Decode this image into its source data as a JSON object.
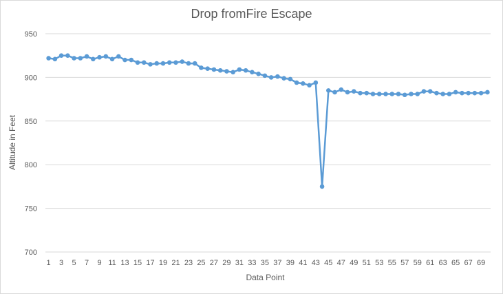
{
  "chart_data": {
    "type": "line",
    "title": "Drop fromFire Escape",
    "xlabel": "Data Point",
    "ylabel": "Altitude in Feet",
    "ylim": [
      700,
      950
    ],
    "yticks": [
      700,
      750,
      800,
      850,
      900,
      950
    ],
    "xtick_labels": [
      1,
      3,
      5,
      7,
      9,
      11,
      13,
      15,
      17,
      19,
      21,
      23,
      25,
      27,
      29,
      31,
      33,
      35,
      37,
      39,
      41,
      43,
      45,
      47,
      49,
      51,
      53,
      55,
      57,
      59,
      61,
      63,
      65,
      67,
      69
    ],
    "grid": "horizontal",
    "legend": "none",
    "series": [
      {
        "name": "Altitude",
        "color": "#5b9bd5",
        "x": [
          1,
          2,
          3,
          4,
          5,
          6,
          7,
          8,
          9,
          10,
          11,
          12,
          13,
          14,
          15,
          16,
          17,
          18,
          19,
          20,
          21,
          22,
          23,
          24,
          25,
          26,
          27,
          28,
          29,
          30,
          31,
          32,
          33,
          34,
          35,
          36,
          37,
          38,
          39,
          40,
          41,
          42,
          43,
          44,
          45,
          46,
          47,
          48,
          49,
          50,
          51,
          52,
          53,
          54,
          55,
          56,
          57,
          58,
          59,
          60,
          61,
          62,
          63,
          64,
          65,
          66,
          67,
          68,
          69,
          70
        ],
        "values": [
          922,
          921,
          925,
          925,
          922,
          922,
          924,
          921,
          923,
          924,
          921,
          924,
          920,
          920,
          917,
          917,
          915,
          916,
          916,
          917,
          917,
          918,
          916,
          916,
          911,
          910,
          909,
          908,
          907,
          906,
          909,
          908,
          906,
          904,
          902,
          900,
          901,
          899,
          898,
          894,
          893,
          891,
          894,
          775,
          885,
          883,
          886,
          883,
          884,
          882,
          882,
          881,
          881,
          881,
          881,
          881,
          880,
          881,
          881,
          884,
          884,
          882,
          881,
          881,
          883,
          882,
          882,
          882,
          882,
          883
        ]
      }
    ]
  }
}
